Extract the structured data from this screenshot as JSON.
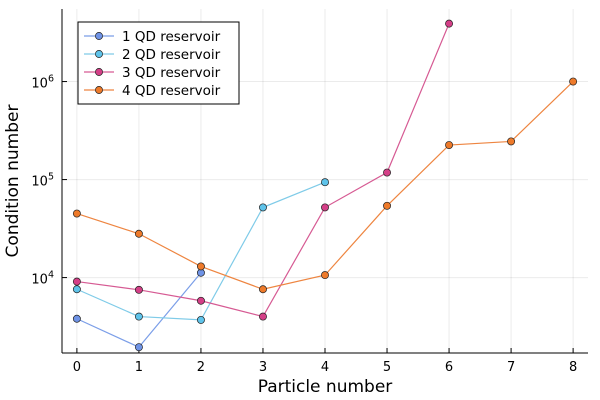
{
  "chart_data": {
    "type": "line",
    "title": "",
    "xlabel": "Particle number",
    "ylabel": "Condition number",
    "x_ticks": [
      0,
      1,
      2,
      3,
      4,
      5,
      6,
      7,
      8
    ],
    "y_scale": "log",
    "y_ticks": [
      {
        "value": 10000,
        "base": "10",
        "exp": "4"
      },
      {
        "value": 100000,
        "base": "10",
        "exp": "5"
      },
      {
        "value": 1000000,
        "base": "10",
        "exp": "6"
      }
    ],
    "xlim": [
      -0.24,
      8.24
    ],
    "ylim": [
      1700,
      5500000
    ],
    "grid": true,
    "legend_position": "top-left",
    "series": [
      {
        "name": "1 QD reservoir",
        "color": "#7b9ee8",
        "marker_color": "#6f93e6",
        "x": [
          0,
          1,
          2
        ],
        "y": [
          3800,
          1950,
          11200
        ]
      },
      {
        "name": "2 QD reservoir",
        "color": "#7fcbe8",
        "marker_color": "#5ec3ea",
        "x": [
          0,
          1,
          2,
          3,
          4
        ],
        "y": [
          7600,
          4000,
          3700,
          52000,
          94000
        ]
      },
      {
        "name": "3 QD reservoir",
        "color": "#d65a93",
        "marker_color": "#d43f87",
        "x": [
          0,
          1,
          2,
          3,
          4,
          5,
          6
        ],
        "y": [
          9100,
          7500,
          5800,
          4000,
          52000,
          118000,
          3900000
        ]
      },
      {
        "name": "4 QD reservoir",
        "color": "#ee8540",
        "marker_color": "#ee7a2a",
        "x": [
          0,
          1,
          2,
          3,
          4,
          5,
          6,
          7,
          8
        ],
        "y": [
          45000,
          28000,
          13000,
          7600,
          10600,
          54000,
          225000,
          245000,
          1000000
        ]
      }
    ]
  }
}
